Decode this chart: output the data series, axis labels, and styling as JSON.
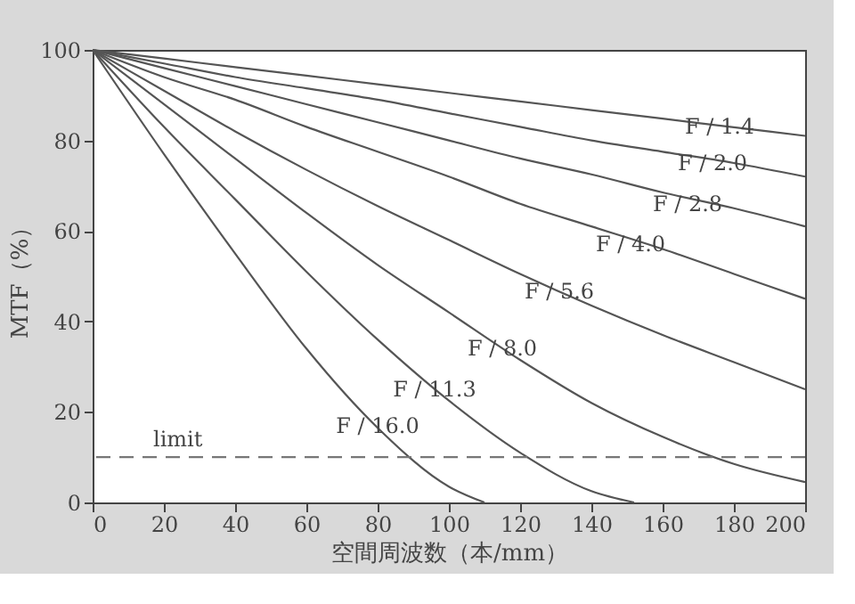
{
  "chart_data": {
    "type": "line",
    "xlabel": "空間周波数（本/mm）",
    "ylabel": "MTF（%）",
    "x": [
      0,
      20,
      40,
      60,
      80,
      100,
      120,
      140,
      160,
      180,
      200
    ],
    "series": [
      {
        "color": "#555555",
        "values": [
          100,
          98.1,
          96.2,
          94.3,
          92.4,
          90.5,
          88.6,
          86.7,
          84.8,
          82.9,
          81
        ]
      },
      {
        "color": "#555555",
        "values": [
          100,
          97,
          94,
          91.5,
          89,
          86,
          83,
          80,
          77.5,
          75,
          72
        ]
      },
      {
        "color": "#555555",
        "values": [
          100,
          96,
          92,
          88,
          84,
          80,
          76,
          72.5,
          68.5,
          65,
          61
        ]
      },
      {
        "color": "#555555",
        "values": [
          100,
          94,
          89,
          83,
          77.5,
          72,
          66,
          61,
          56,
          50.5,
          45
        ]
      },
      {
        "color": "#555555",
        "values": [
          100,
          91,
          82,
          73.5,
          65.5,
          58,
          50.5,
          43.5,
          37,
          31,
          25
        ]
      },
      {
        "color": "#555555",
        "values": [
          100,
          88,
          76,
          64,
          52.5,
          42,
          31.5,
          22,
          14.5,
          8.5,
          4.5
        ]
      },
      {
        "color": "#555555",
        "x": [
          0,
          20,
          40,
          60,
          80,
          100,
          120,
          140,
          152
        ],
        "values": [
          100,
          83,
          67,
          51,
          36,
          22.5,
          11,
          2.5,
          0
        ]
      },
      {
        "color": "#555555",
        "x": [
          0,
          20,
          40,
          60,
          80,
          100,
          110
        ],
        "values": [
          100,
          77,
          55,
          34,
          16.5,
          3.5,
          0
        ]
      }
    ],
    "annotations": [
      {
        "text": "F / 1.4",
        "x": 176,
        "y": 83
      },
      {
        "text": "F / 2.0",
        "x": 174,
        "y": 75
      },
      {
        "text": "F / 2.8",
        "x": 167,
        "y": 66
      },
      {
        "text": "F / 4.0",
        "x": 151,
        "y": 57
      },
      {
        "text": "F / 5.6",
        "x": 131,
        "y": 46.6
      },
      {
        "text": "F / 8.0",
        "x": 115,
        "y": 34
      },
      {
        "text": "F / 11.3",
        "x": 96,
        "y": 25
      },
      {
        "text": "F / 16.0",
        "x": 80,
        "y": 17
      }
    ],
    "ref_lines": [
      {
        "axis": "y",
        "value": 10,
        "label": "limit",
        "color": "#777777",
        "line_style": "dashed"
      }
    ],
    "xlim": [
      0,
      200
    ],
    "xticks": [
      0,
      20,
      40,
      60,
      80,
      100,
      120,
      140,
      160,
      180,
      200
    ],
    "ylim": [
      0,
      100
    ],
    "yticks": [
      0,
      20,
      40,
      60,
      80,
      100
    ],
    "grid": false,
    "marker": "none",
    "line_style": "solid"
  }
}
